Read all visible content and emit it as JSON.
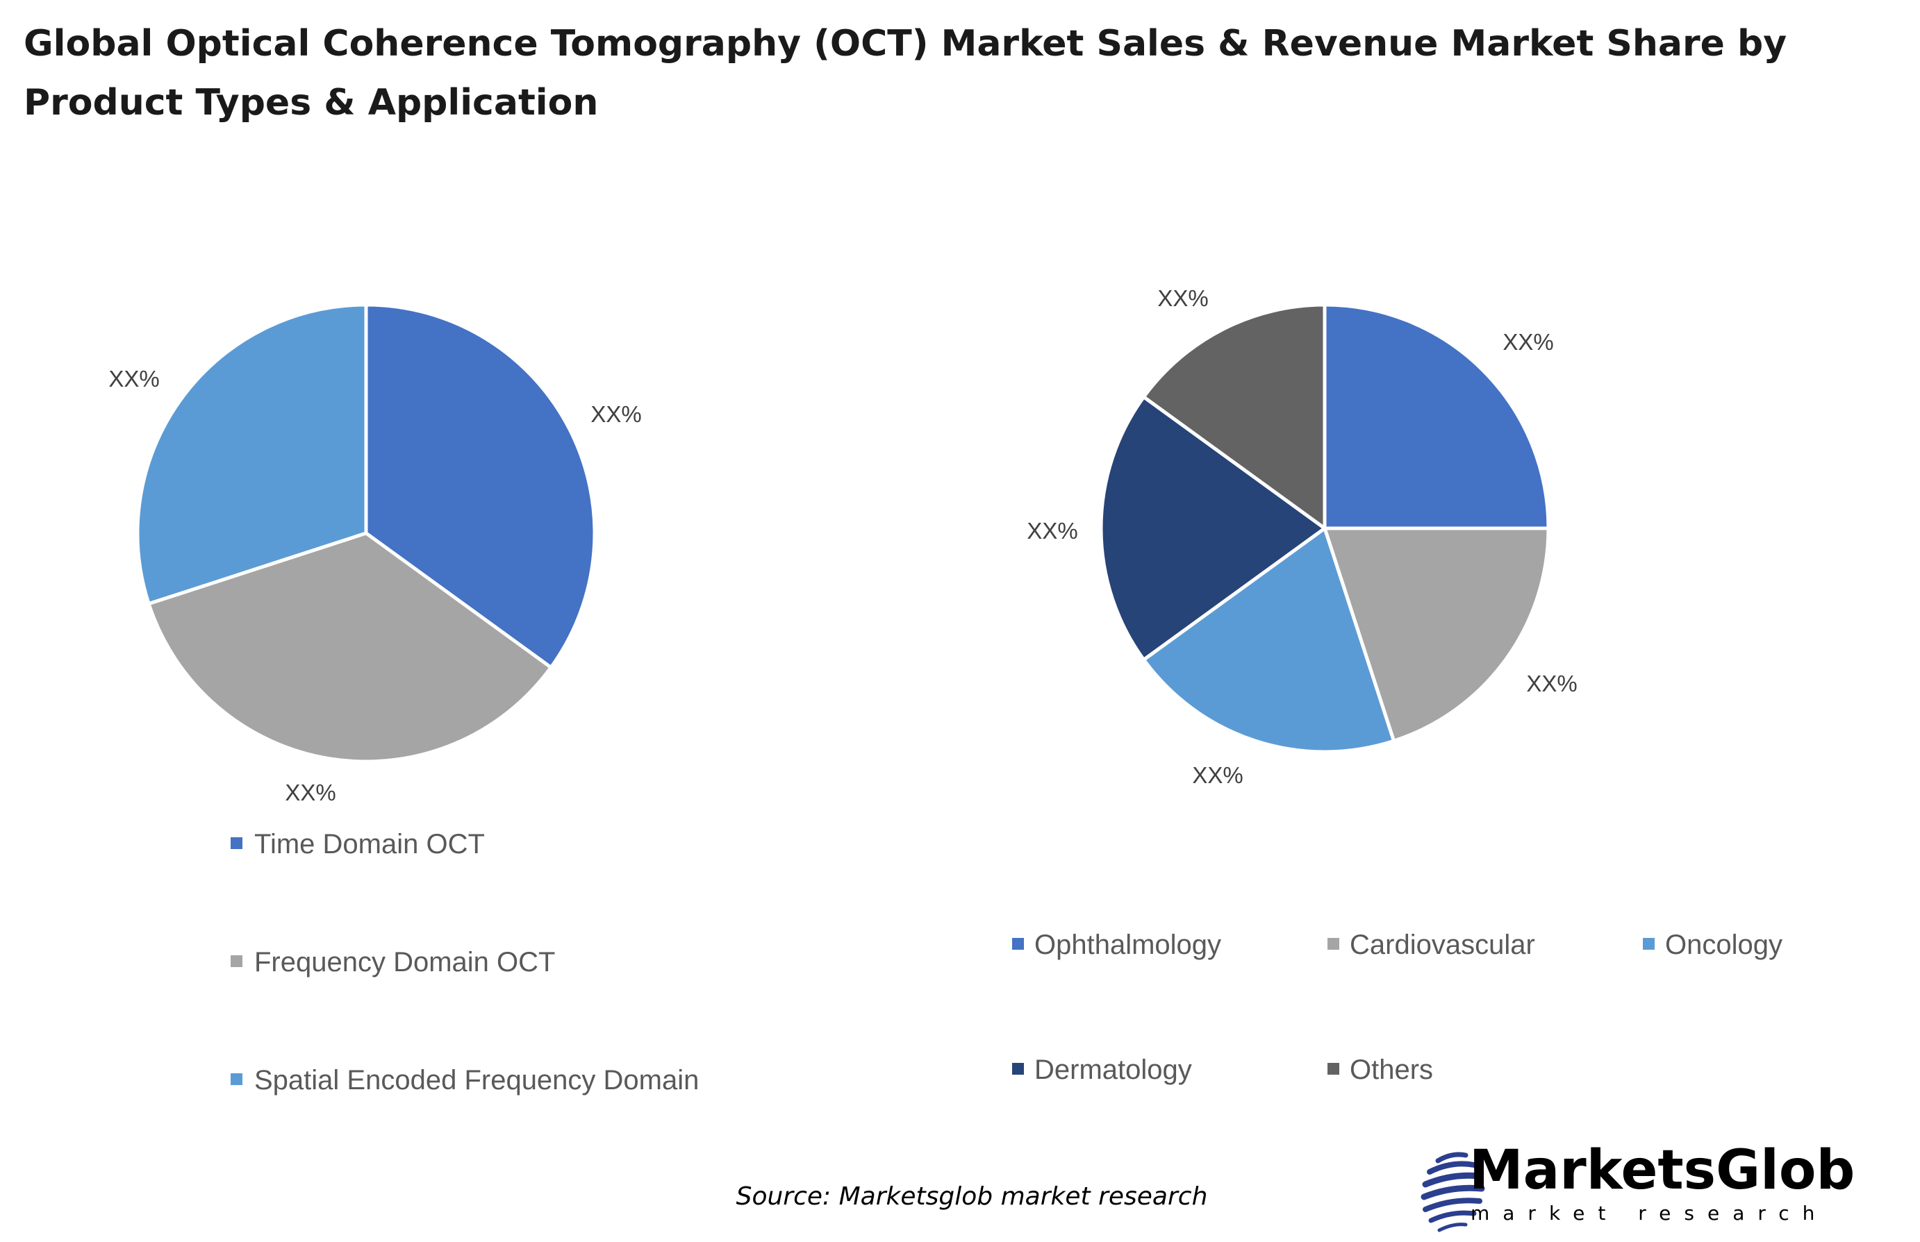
{
  "title_line1": "Global Optical Coherence Tomography (OCT) Market Sales & Revenue Market Share by",
  "title_line2": "Product Types & Application",
  "chart_data": [
    {
      "type": "pie",
      "categories": [
        "Time Domain OCT",
        "Frequency Domain OCT",
        "Spatial Encoded Frequency Domain"
      ],
      "values": [
        35,
        35,
        30
      ],
      "data_labels": [
        "XX%",
        "XX%",
        "XX%"
      ],
      "colors": [
        "#4472C4",
        "#A5A5A5",
        "#5B9BD5"
      ],
      "legend_placement": "bottom"
    },
    {
      "type": "pie",
      "categories": [
        "Ophthalmology",
        "Cardiovascular",
        "Oncology",
        "Dermatology",
        "Others"
      ],
      "values": [
        25,
        20,
        20,
        20,
        15
      ],
      "data_labels": [
        "XX%",
        "XX%",
        "XX%",
        "XX%",
        "XX%"
      ],
      "colors": [
        "#4472C4",
        "#A5A5A5",
        "#5B9BD5",
        "#264478",
        "#636363"
      ],
      "legend_placement": "bottom"
    }
  ],
  "source": "Source: Marketsglob market research",
  "logo": {
    "name": "MarketsGlob",
    "tagline": "market research"
  }
}
